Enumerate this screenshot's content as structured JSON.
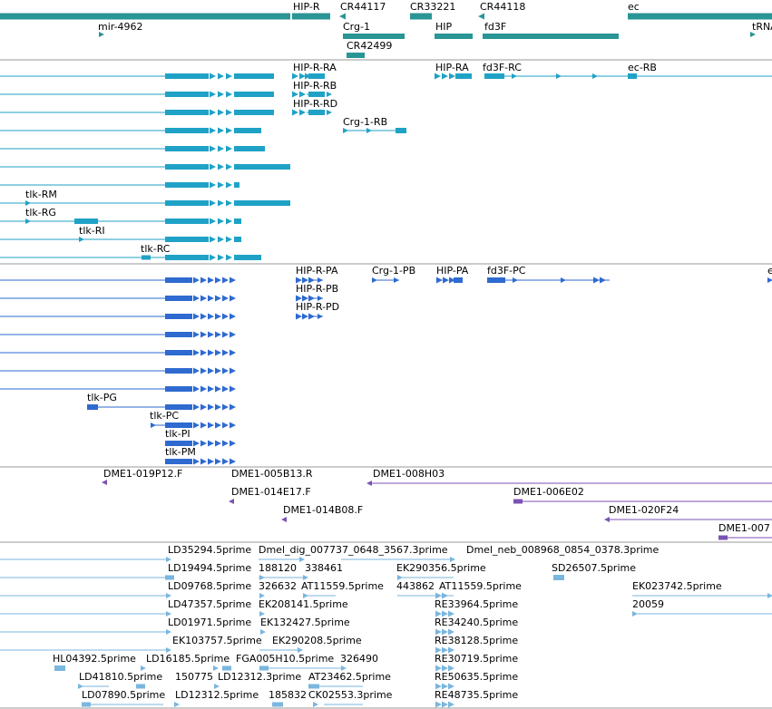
{
  "colors": {
    "gene": "#2a9595",
    "mrna": "#1fa2c6",
    "cds": "#2e6ad0",
    "clone": "#7b52b4",
    "est": "#7ab6de",
    "separator": "#999999",
    "label": "#000000"
  },
  "tracks": {
    "gene": {
      "labels": [
        "HIP-R",
        "CR44117",
        "CR33221",
        "CR44118",
        "ec",
        "mir-4962",
        "Crg-1",
        "HIP",
        "fd3F",
        "tRNA",
        "CR42499"
      ]
    },
    "mrna": {
      "labels": [
        "HIP-R-RA",
        "HIP-RA",
        "fd3F-RC",
        "ec-RB",
        "HIP-R-RB",
        "HIP-R-RD",
        "Crg-1-RB",
        "tlk-RM",
        "tlk-RG",
        "tlk-RI",
        "tlk-RC"
      ]
    },
    "cds": {
      "labels": [
        "HIP-R-PA",
        "Crg-1-PB",
        "HIP-PA",
        "fd3F-PC",
        "e",
        "HIP-R-PB",
        "HIP-R-PD",
        "tlk-PG",
        "tlk-PC",
        "tlk-PI",
        "tlk-PM"
      ]
    },
    "clones": {
      "labels": [
        "DME1-019P12.F",
        "DME1-005B13.R",
        "DME1-008H03",
        "DME1-014E17.F",
        "DME1-006E02",
        "DME1-014B08.F",
        "DME1-020F24",
        "DME1-007"
      ]
    },
    "ests": {
      "labels": [
        "LD35294.5prime",
        "Dmel_dig_007737_0648_3567.3prime",
        "Dmel_neb_008968_0854_0378.3prime",
        "LD19494.5prime",
        "188120",
        "338461",
        "EK290356.5prime",
        "SD26507.5prime",
        "LD09768.5prime",
        "326632",
        "AT11559.5prime",
        "443862",
        "AT11559.5prime",
        "EK023742.5prime",
        "LD47357.5prime",
        "EK208141.5prime",
        "RE33964.5prime",
        "20059",
        "LD01971.5prime",
        "EK132427.5prime",
        "RE34240.5prime",
        "EK103757.5prime",
        "EK290208.5prime",
        "RE38128.5prime",
        "HL04392.5prime",
        "LD16185.5prime",
        "FGA005H10.5prime",
        "326490",
        "RE30719.5prime",
        "LD41810.5prime",
        "150775",
        "LD12312.3prime",
        "AT23462.5prime",
        "RE50635.5prime",
        "LD07890.5prime",
        "LD12312.5prime",
        "185832",
        "CK02553.3prime",
        "RE48735.5prime"
      ]
    }
  }
}
